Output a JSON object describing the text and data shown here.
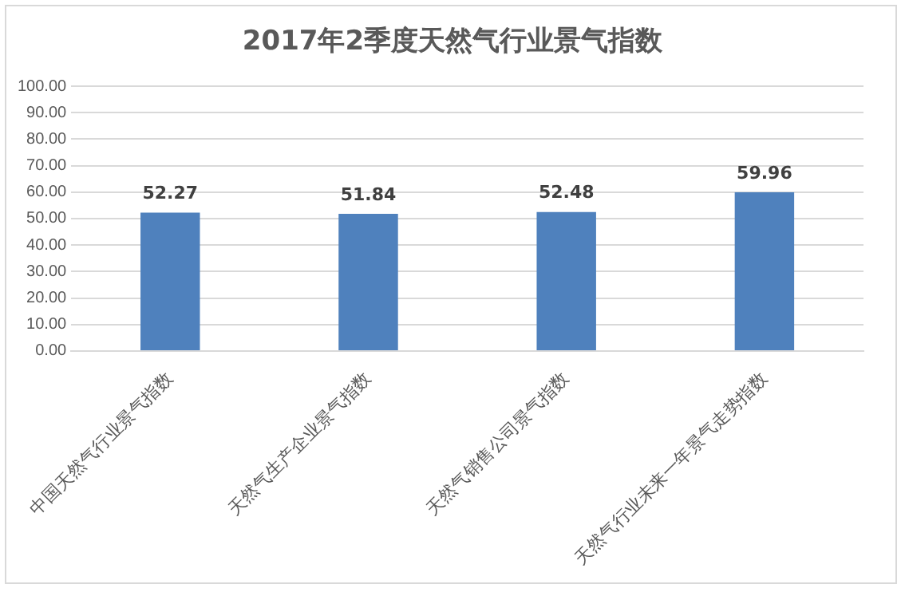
{
  "chart_data": {
    "type": "bar",
    "title": "2017年2季度天然气行业景气指数",
    "categories": [
      "中国天然气行业景气指数",
      "天然气生产企业景气指数",
      "天然气销售公司景气指数",
      "天然气行业未来一年景气走势指数"
    ],
    "values": [
      52.27,
      51.84,
      52.48,
      59.96
    ],
    "color": "#4f81bd",
    "ylim": [
      0,
      100
    ],
    "yticks": [
      {
        "value": 0,
        "label": "0.00"
      },
      {
        "value": 10,
        "label": "10.00"
      },
      {
        "value": 20,
        "label": "20.00"
      },
      {
        "value": 30,
        "label": "30.00"
      },
      {
        "value": 40,
        "label": "40.00"
      },
      {
        "value": 50,
        "label": "50.00"
      },
      {
        "value": 60,
        "label": "60.00"
      },
      {
        "value": 70,
        "label": "70.00"
      },
      {
        "value": 80,
        "label": "80.00"
      },
      {
        "value": 90,
        "label": "90.00"
      },
      {
        "value": 100,
        "label": "100.00"
      }
    ],
    "grid": "y",
    "data_labels": true
  }
}
